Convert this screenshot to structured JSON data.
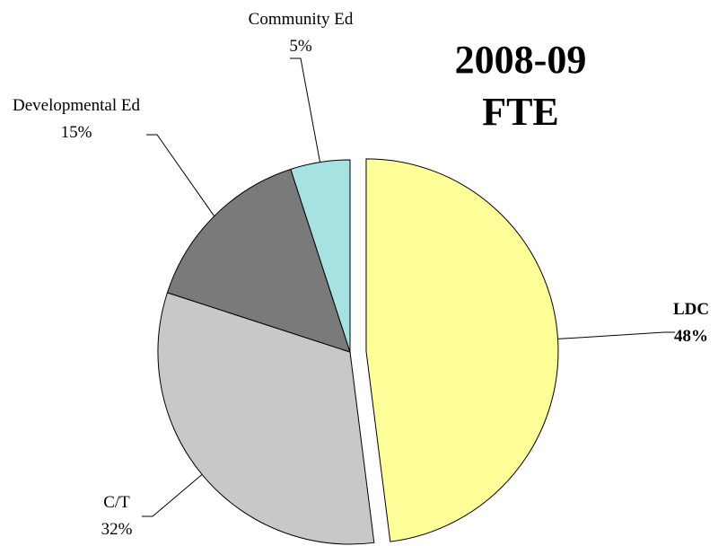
{
  "chart_data": {
    "type": "pie",
    "title": "2008-09 FTE",
    "categories": [
      "LDC",
      "C/T",
      "Developmental Ed",
      "Community Ed"
    ],
    "values": [
      48,
      32,
      15,
      5
    ],
    "value_labels": [
      "48%",
      "32%",
      "15%",
      "5%"
    ],
    "colors": [
      "#ffff99",
      "#c8c8c8",
      "#7a7a7a",
      "#a6e2e2"
    ]
  }
}
